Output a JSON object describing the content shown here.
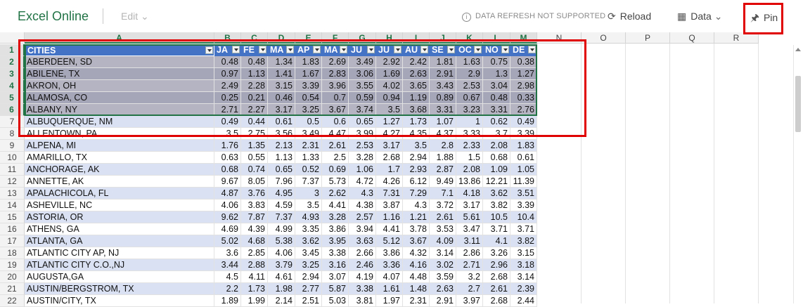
{
  "topbar": {
    "app_title": "Excel Online",
    "edit_label": "Edit",
    "refresh_note": "DATA REFRESH NOT SUPPORTED",
    "reload_label": "Reload",
    "data_label": "Data",
    "pin_label": "Pin"
  },
  "columns": [
    "A",
    "B",
    "C",
    "D",
    "E",
    "F",
    "G",
    "H",
    "I",
    "J",
    "K",
    "L",
    "M",
    "N",
    "O",
    "P",
    "Q",
    "R"
  ],
  "header_row": [
    "CITIES",
    "JA",
    "FE",
    "MA",
    "AP",
    "MA",
    "JU",
    "JU",
    "AU",
    "SE",
    "OC",
    "NO",
    "DE"
  ],
  "rows": [
    {
      "n": "2",
      "city": "ABERDEEN, SD",
      "v": [
        "0.48",
        "0.48",
        "1.34",
        "1.83",
        "2.69",
        "3.49",
        "2.92",
        "2.42",
        "1.81",
        "1.63",
        "0.75",
        "0.38"
      ]
    },
    {
      "n": "3",
      "city": "ABILENE, TX",
      "v": [
        "0.97",
        "1.13",
        "1.41",
        "1.67",
        "2.83",
        "3.06",
        "1.69",
        "2.63",
        "2.91",
        "2.9",
        "1.3",
        "1.27"
      ]
    },
    {
      "n": "4",
      "city": "AKRON, OH",
      "v": [
        "2.49",
        "2.28",
        "3.15",
        "3.39",
        "3.96",
        "3.55",
        "4.02",
        "3.65",
        "3.43",
        "2.53",
        "3.04",
        "2.98"
      ]
    },
    {
      "n": "5",
      "city": "ALAMOSA, CO",
      "v": [
        "0.25",
        "0.21",
        "0.46",
        "0.54",
        "0.7",
        "0.59",
        "0.94",
        "1.19",
        "0.89",
        "0.67",
        "0.48",
        "0.33"
      ]
    },
    {
      "n": "6",
      "city": "ALBANY, NY",
      "v": [
        "2.71",
        "2.27",
        "3.17",
        "3.25",
        "3.67",
        "3.74",
        "3.5",
        "3.68",
        "3.31",
        "3.23",
        "3.31",
        "2.76"
      ]
    },
    {
      "n": "7",
      "city": "ALBUQUERQUE, NM",
      "v": [
        "0.49",
        "0.44",
        "0.61",
        "0.5",
        "0.6",
        "0.65",
        "1.27",
        "1.73",
        "1.07",
        "1",
        "0.62",
        "0.49"
      ]
    },
    {
      "n": "8",
      "city": "ALLENTOWN, PA",
      "v": [
        "3.5",
        "2.75",
        "3.56",
        "3.49",
        "4.47",
        "3.99",
        "4.27",
        "4.35",
        "4.37",
        "3.33",
        "3.7",
        "3.39"
      ]
    },
    {
      "n": "9",
      "city": "ALPENA, MI",
      "v": [
        "1.76",
        "1.35",
        "2.13",
        "2.31",
        "2.61",
        "2.53",
        "3.17",
        "3.5",
        "2.8",
        "2.33",
        "2.08",
        "1.83"
      ]
    },
    {
      "n": "10",
      "city": "AMARILLO, TX",
      "v": [
        "0.63",
        "0.55",
        "1.13",
        "1.33",
        "2.5",
        "3.28",
        "2.68",
        "2.94",
        "1.88",
        "1.5",
        "0.68",
        "0.61"
      ]
    },
    {
      "n": "11",
      "city": "ANCHORAGE, AK",
      "v": [
        "0.68",
        "0.74",
        "0.65",
        "0.52",
        "0.69",
        "1.06",
        "1.7",
        "2.93",
        "2.87",
        "2.08",
        "1.09",
        "1.05"
      ]
    },
    {
      "n": "12",
      "city": "ANNETTE, AK",
      "v": [
        "9.67",
        "8.05",
        "7.96",
        "7.37",
        "5.73",
        "4.72",
        "4.26",
        "6.12",
        "9.49",
        "13.86",
        "12.21",
        "11.39"
      ]
    },
    {
      "n": "13",
      "city": "APALACHICOLA, FL",
      "v": [
        "4.87",
        "3.76",
        "4.95",
        "3",
        "2.62",
        "4.3",
        "7.31",
        "7.29",
        "7.1",
        "4.18",
        "3.62",
        "3.51"
      ]
    },
    {
      "n": "14",
      "city": "ASHEVILLE, NC",
      "v": [
        "4.06",
        "3.83",
        "4.59",
        "3.5",
        "4.41",
        "4.38",
        "3.87",
        "4.3",
        "3.72",
        "3.17",
        "3.82",
        "3.39"
      ]
    },
    {
      "n": "15",
      "city": "ASTORIA, OR",
      "v": [
        "9.62",
        "7.87",
        "7.37",
        "4.93",
        "3.28",
        "2.57",
        "1.16",
        "1.21",
        "2.61",
        "5.61",
        "10.5",
        "10.4"
      ]
    },
    {
      "n": "16",
      "city": "ATHENS, GA",
      "v": [
        "4.69",
        "4.39",
        "4.99",
        "3.35",
        "3.86",
        "3.94",
        "4.41",
        "3.78",
        "3.53",
        "3.47",
        "3.71",
        "3.71"
      ]
    },
    {
      "n": "17",
      "city": "ATLANTA, GA",
      "v": [
        "5.02",
        "4.68",
        "5.38",
        "3.62",
        "3.95",
        "3.63",
        "5.12",
        "3.67",
        "4.09",
        "3.11",
        "4.1",
        "3.82"
      ]
    },
    {
      "n": "18",
      "city": "ATLANTIC CITY AP, NJ",
      "v": [
        "3.6",
        "2.85",
        "4.06",
        "3.45",
        "3.38",
        "2.66",
        "3.86",
        "4.32",
        "3.14",
        "2.86",
        "3.26",
        "3.15"
      ]
    },
    {
      "n": "19",
      "city": "ATLANTIC CITY C.O.,NJ",
      "v": [
        "3.44",
        "2.88",
        "3.79",
        "3.25",
        "3.16",
        "2.46",
        "3.36",
        "4.16",
        "3.02",
        "2.71",
        "2.96",
        "3.18"
      ]
    },
    {
      "n": "20",
      "city": "AUGUSTA,GA",
      "v": [
        "4.5",
        "4.11",
        "4.61",
        "2.94",
        "3.07",
        "4.19",
        "4.07",
        "4.48",
        "3.59",
        "3.2",
        "2.68",
        "3.14"
      ]
    },
    {
      "n": "21",
      "city": "AUSTIN/BERGSTROM, TX",
      "v": [
        "2.2",
        "1.73",
        "1.98",
        "2.77",
        "5.87",
        "3.38",
        "1.61",
        "1.48",
        "2.63",
        "2.7",
        "2.61",
        "2.39"
      ]
    },
    {
      "n": "22",
      "city": "AUSTIN/CITY, TX",
      "v": [
        "1.89",
        "1.99",
        "2.14",
        "2.51",
        "5.03",
        "3.81",
        "1.97",
        "2.31",
        "2.91",
        "3.97",
        "2.68",
        "2.44"
      ]
    }
  ]
}
